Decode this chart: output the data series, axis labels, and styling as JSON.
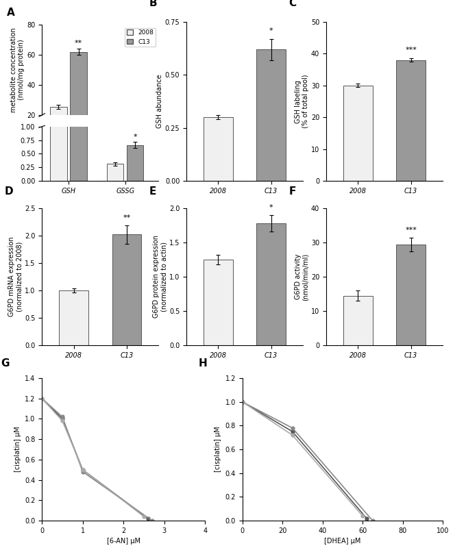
{
  "panel_A": {
    "groups": [
      "GSH",
      "GSSG"
    ],
    "values_2008": [
      25.5,
      0.31
    ],
    "values_C13": [
      62.0,
      0.66
    ],
    "err_2008": [
      1.2,
      0.03
    ],
    "err_C13": [
      2.0,
      0.06
    ],
    "ylabel": "metabolite concentration\n(nmol/mg protein)",
    "sig_GSH": "**",
    "sig_GSSG": "*",
    "yticks_upper": [
      20,
      40,
      60,
      80
    ],
    "yticks_lower": [
      0.0,
      0.25,
      0.5,
      0.75,
      1.0
    ]
  },
  "panel_B": {
    "values_2008": 0.3,
    "values_C13": 0.62,
    "err_2008": 0.01,
    "err_C13": 0.05,
    "ylabel": "GSH abundance",
    "ylim": [
      0,
      0.75
    ],
    "yticks": [
      0.0,
      0.25,
      0.5,
      0.75
    ],
    "sig": "*",
    "xticks": [
      "2008",
      "C13"
    ]
  },
  "panel_C": {
    "values_2008": 30.0,
    "values_C13": 38.0,
    "err_2008": 0.5,
    "err_C13": 0.5,
    "ylabel": "GSH labeling\n(% of total pool)",
    "ylim": [
      0,
      50
    ],
    "yticks": [
      0,
      10,
      20,
      30,
      40,
      50
    ],
    "sig": "***",
    "xticks": [
      "2008",
      "C13"
    ]
  },
  "panel_D": {
    "values_2008": 1.0,
    "values_C13": 2.02,
    "err_2008": 0.04,
    "err_C13": 0.17,
    "ylabel": "G6PD mRNA expression\n(normalized to 2008)",
    "ylim": [
      0,
      2.5
    ],
    "yticks": [
      0.0,
      0.5,
      1.0,
      1.5,
      2.0,
      2.5
    ],
    "sig": "**",
    "xticks": [
      "2008",
      "C13"
    ]
  },
  "panel_E": {
    "values_2008": 1.25,
    "values_C13": 1.78,
    "err_2008": 0.07,
    "err_C13": 0.12,
    "ylabel": "G6PD protein expression\n(normalized to actin)",
    "ylim": [
      0,
      2.0
    ],
    "yticks": [
      0.0,
      0.5,
      1.0,
      1.5,
      2.0
    ],
    "sig": "*",
    "xticks": [
      "2008",
      "C13"
    ]
  },
  "panel_F": {
    "values_2008": 14.5,
    "values_C13": 29.5,
    "err_2008": 1.5,
    "err_C13": 2.0,
    "ylabel": "G6PD activity\n(nmol/min/ml)",
    "ylim": [
      0,
      40
    ],
    "yticks": [
      0,
      10,
      20,
      30,
      40
    ],
    "sig": "***",
    "xticks": [
      "2008",
      "C13"
    ]
  },
  "panel_G": {
    "xlabel": "[6-AN] μM",
    "ylabel": "[cisplatin] μM",
    "xlim": [
      0,
      4
    ],
    "ylim": [
      0,
      1.4
    ],
    "xticks": [
      0,
      1,
      2,
      3,
      4
    ],
    "yticks": [
      0.0,
      0.2,
      0.4,
      0.6,
      0.8,
      1.0,
      1.2,
      1.4
    ],
    "line1_x": [
      0,
      0.5,
      1.0,
      2.6
    ],
    "line1_y": [
      1.2,
      1.0,
      0.5,
      0.02
    ],
    "line2_x": [
      0,
      0.5,
      1.0,
      2.7
    ],
    "line2_y": [
      1.2,
      1.02,
      0.48,
      0.0
    ],
    "line3_x": [
      0,
      0.5,
      1.0,
      2.5
    ],
    "line3_y": [
      1.2,
      0.98,
      0.5,
      0.04
    ],
    "colors": [
      "#555555",
      "#888888",
      "#aaaaaa"
    ]
  },
  "panel_H": {
    "xlabel": "[DHEA] μM",
    "ylabel": "[cisplatin] μM",
    "xlim": [
      0,
      100
    ],
    "ylim": [
      0,
      1.2
    ],
    "xticks": [
      0,
      20,
      40,
      60,
      80,
      100
    ],
    "yticks": [
      0.0,
      0.2,
      0.4,
      0.6,
      0.8,
      1.0,
      1.2
    ],
    "line1_x": [
      0,
      25,
      62
    ],
    "line1_y": [
      1.0,
      0.75,
      0.02
    ],
    "line2_x": [
      0,
      25,
      65
    ],
    "line2_y": [
      1.0,
      0.78,
      0.0
    ],
    "line3_x": [
      0,
      25,
      60
    ],
    "line3_y": [
      1.0,
      0.72,
      0.04
    ],
    "colors": [
      "#555555",
      "#888888",
      "#aaaaaa"
    ]
  },
  "color_2008": "#f0f0f0",
  "color_C13": "#999999",
  "bar_edge": "#555555",
  "label_fontsize": 7,
  "tick_fontsize": 7,
  "panel_label_fontsize": 11,
  "sig_fontsize": 8,
  "bar_width": 0.55
}
